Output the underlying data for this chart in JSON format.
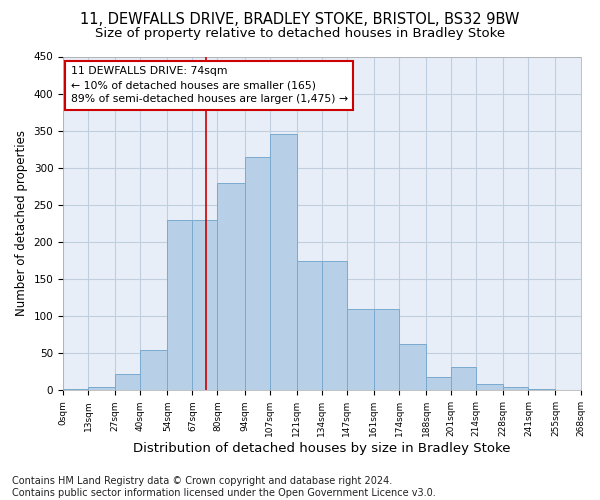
{
  "title1": "11, DEWFALLS DRIVE, BRADLEY STOKE, BRISTOL, BS32 9BW",
  "title2": "Size of property relative to detached houses in Bradley Stoke",
  "xlabel": "Distribution of detached houses by size in Bradley Stoke",
  "ylabel": "Number of detached properties",
  "footnote": "Contains HM Land Registry data © Crown copyright and database right 2024.\nContains public sector information licensed under the Open Government Licence v3.0.",
  "bin_edges": [
    0,
    13,
    27,
    40,
    54,
    67,
    80,
    94,
    107,
    121,
    134,
    147,
    161,
    174,
    188,
    201,
    214,
    228,
    241,
    255,
    268
  ],
  "bar_heights": [
    2,
    5,
    22,
    55,
    230,
    230,
    280,
    315,
    345,
    175,
    175,
    110,
    110,
    63,
    18,
    32,
    8,
    5,
    2,
    1
  ],
  "bar_color": "#b8cfe8",
  "bar_edge_color": "#7aaad0",
  "vline_x": 74,
  "vline_color": "#cc0000",
  "annotation_text": "11 DEWFALLS DRIVE: 74sqm\n← 10% of detached houses are smaller (165)\n89% of semi-detached houses are larger (1,475) →",
  "annotation_box_color": "#ffffff",
  "annotation_box_edge": "#cc0000",
  "ylim": [
    0,
    450
  ],
  "xlim": [
    0,
    268
  ],
  "tick_labels": [
    "0sqm",
    "13sqm",
    "27sqm",
    "40sqm",
    "54sqm",
    "67sqm",
    "80sqm",
    "94sqm",
    "107sqm",
    "121sqm",
    "134sqm",
    "147sqm",
    "161sqm",
    "174sqm",
    "188sqm",
    "201sqm",
    "214sqm",
    "228sqm",
    "241sqm",
    "255sqm",
    "268sqm"
  ],
  "background_color": "#ffffff",
  "axes_bg_color": "#e8eef8",
  "grid_color": "#c0cfe0",
  "title1_fontsize": 10.5,
  "title2_fontsize": 9.5,
  "xlabel_fontsize": 9.5,
  "ylabel_fontsize": 8.5,
  "footnote_fontsize": 7.0,
  "yticks": [
    0,
    50,
    100,
    150,
    200,
    250,
    300,
    350,
    400,
    450
  ]
}
